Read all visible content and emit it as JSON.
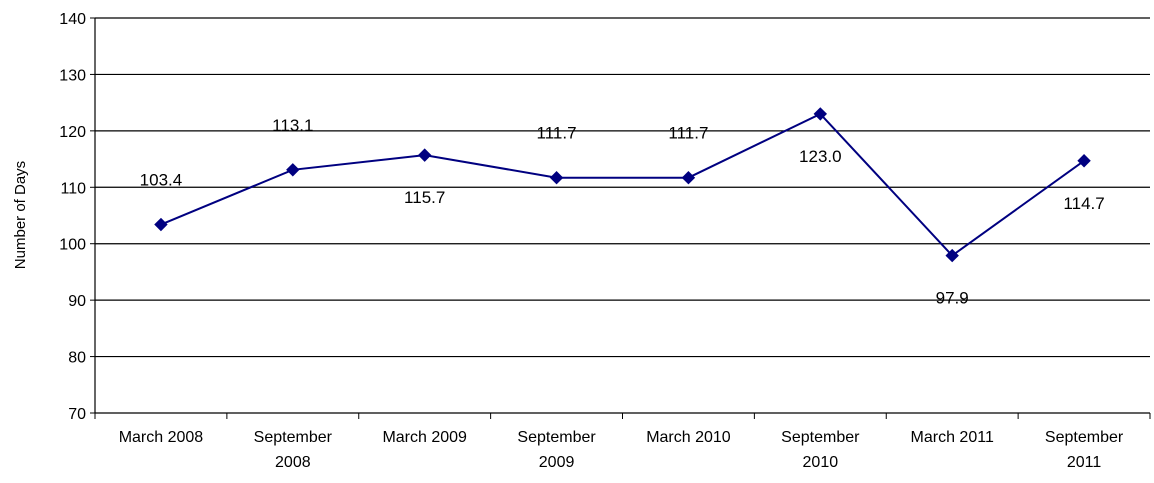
{
  "chart_data": {
    "type": "line",
    "title": "",
    "xlabel": "",
    "ylabel": "Number of Days",
    "ylim": [
      70,
      140
    ],
    "yticks": [
      70,
      80,
      90,
      100,
      110,
      120,
      130,
      140
    ],
    "grid": true,
    "legend": "none",
    "categories": [
      [
        "March 2008"
      ],
      [
        "September",
        "2008"
      ],
      [
        "March 2009"
      ],
      [
        "September",
        "2009"
      ],
      [
        "March 2010"
      ],
      [
        "September",
        "2010"
      ],
      [
        "March 2011"
      ],
      [
        "September",
        "2011"
      ]
    ],
    "series": [
      {
        "values": [
          103.4,
          113.1,
          115.7,
          111.7,
          111.7,
          123.0,
          97.9,
          114.7
        ],
        "labels": [
          "103.4",
          "113.1",
          "115.7",
          "111.7",
          "111.7",
          "123.0",
          "97.9",
          "114.7"
        ],
        "label_position": [
          "above",
          "above",
          "below",
          "above",
          "above",
          "below",
          "below",
          "below"
        ],
        "color": "#000080"
      }
    ]
  }
}
